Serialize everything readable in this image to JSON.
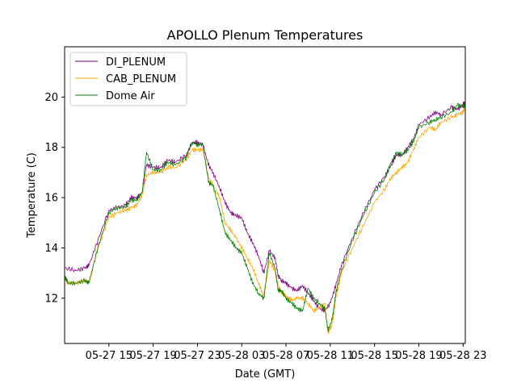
{
  "chart_data": {
    "type": "line",
    "title": "APOLLO Plenum Temperatures",
    "xlabel": "Date (GMT)",
    "ylabel": "Temperature (C)",
    "x_unit": "hours since 05-27 11:00",
    "xlim": [
      0.0,
      36.2
    ],
    "ylim": [
      10.2,
      22.0
    ],
    "x_ticks": [
      {
        "value": 4,
        "label": "05-27 15"
      },
      {
        "value": 8,
        "label": "05-27 19"
      },
      {
        "value": 12,
        "label": "05-27 23"
      },
      {
        "value": 16,
        "label": "05-28 03"
      },
      {
        "value": 20,
        "label": "05-28 07"
      },
      {
        "value": 24,
        "label": "05-28 11"
      },
      {
        "value": 28,
        "label": "05-28 15"
      },
      {
        "value": 32,
        "label": "05-28 19"
      },
      {
        "value": 36,
        "label": "05-28 23"
      }
    ],
    "y_ticks": [
      {
        "value": 12,
        "label": "12"
      },
      {
        "value": 14,
        "label": "14"
      },
      {
        "value": 16,
        "label": "16"
      },
      {
        "value": 18,
        "label": "18"
      },
      {
        "value": 20,
        "label": "20"
      }
    ],
    "grid": false,
    "legend_position": "top-left",
    "series": [
      {
        "name": "DI_PLENUM",
        "color": "#800080",
        "x": [
          0,
          1,
          1.8,
          2.2,
          3,
          4,
          4.7,
          5.5,
          6,
          6.5,
          7,
          7.4,
          8,
          8.7,
          9.3,
          10,
          11,
          11.5,
          12,
          12.5,
          13,
          13.4,
          14,
          14.5,
          15,
          15.4,
          16,
          16.5,
          17,
          17.5,
          18,
          18.5,
          19,
          19.3,
          19.6,
          20,
          20.5,
          21,
          21.5,
          22,
          22.5,
          23,
          23.5,
          24,
          24.5,
          25,
          26,
          27,
          28,
          29,
          29.5,
          30,
          30.5,
          31,
          31.5,
          32,
          33,
          33.5,
          34,
          35,
          35.5,
          36,
          36.2
        ],
        "y": [
          13.2,
          13.1,
          13.2,
          13.3,
          14.3,
          15.5,
          15.6,
          15.7,
          16.0,
          16.0,
          16.2,
          17.3,
          17.2,
          17.2,
          17.5,
          17.4,
          17.7,
          18.2,
          18.2,
          18.1,
          17.3,
          17.0,
          16.4,
          15.8,
          15.4,
          15.3,
          15.2,
          14.6,
          14.2,
          13.7,
          13.0,
          13.9,
          13.6,
          12.9,
          12.7,
          12.6,
          12.4,
          12.3,
          12.5,
          12.2,
          11.9,
          11.6,
          11.5,
          11.8,
          12.5,
          13.3,
          14.4,
          15.4,
          16.3,
          16.9,
          17.3,
          17.7,
          17.7,
          18.0,
          18.3,
          18.9,
          19.2,
          19.4,
          19.3,
          19.6,
          19.5,
          19.7,
          19.8
        ]
      },
      {
        "name": "CAB_PLENUM",
        "color": "#FFA500",
        "x": [
          0,
          0.3,
          1,
          1.8,
          2.2,
          3,
          4,
          4.7,
          5.5,
          6,
          6.5,
          7,
          7.4,
          8,
          8.7,
          9.3,
          10,
          11,
          11.5,
          12,
          12.5,
          13,
          13.4,
          14,
          14.5,
          15,
          15.5,
          16,
          16.5,
          17,
          17.5,
          18,
          18.5,
          19,
          19.3,
          19.6,
          20,
          20.5,
          21,
          21.5,
          22,
          22.5,
          23,
          23.5,
          23.8,
          24.2,
          24.5,
          25,
          26,
          27,
          28,
          29,
          29.5,
          30,
          30.5,
          31,
          31.5,
          32,
          33,
          33.5,
          34,
          35,
          35.5,
          36,
          36.2
        ],
        "y": [
          12.8,
          12.6,
          12.6,
          12.7,
          12.6,
          14.0,
          15.2,
          15.4,
          15.5,
          15.6,
          15.7,
          16.1,
          16.9,
          17.0,
          17.0,
          17.2,
          17.2,
          17.5,
          17.9,
          17.9,
          17.9,
          16.8,
          16.5,
          16.0,
          15.0,
          14.7,
          14.4,
          14.0,
          13.6,
          13.2,
          12.6,
          12.1,
          13.5,
          13.1,
          12.5,
          12.2,
          12.1,
          11.9,
          12.0,
          12.0,
          11.8,
          11.5,
          11.6,
          11.8,
          10.6,
          11.0,
          12.0,
          13.0,
          14.0,
          14.9,
          15.8,
          16.4,
          16.8,
          17.0,
          17.2,
          17.4,
          17.9,
          18.4,
          18.8,
          18.7,
          19.0,
          19.2,
          19.3,
          19.4,
          19.6
        ]
      },
      {
        "name": "Dome Air",
        "color": "#008000",
        "x": [
          0,
          0.3,
          1,
          1.8,
          2.2,
          3,
          4,
          4.7,
          5.5,
          6,
          6.5,
          7,
          7.4,
          8,
          8.7,
          9.3,
          10,
          11,
          11.5,
          12,
          12.5,
          13,
          13.4,
          14,
          14.5,
          15,
          15.5,
          16,
          16.5,
          17,
          17.5,
          18,
          18.5,
          19,
          19.3,
          19.6,
          20,
          20.5,
          21,
          21.5,
          22,
          22.5,
          23,
          23.5,
          23.8,
          24.2,
          24.5,
          25,
          26,
          27,
          28,
          29,
          29.5,
          30,
          30.5,
          31,
          31.5,
          32,
          33,
          33.5,
          34,
          35,
          35.5,
          36,
          36.2
        ],
        "y": [
          12.9,
          12.6,
          12.6,
          12.7,
          12.6,
          14.0,
          15.4,
          15.6,
          15.6,
          15.9,
          15.9,
          16.2,
          17.8,
          17.1,
          17.1,
          17.4,
          17.3,
          17.6,
          18.2,
          18.1,
          18.1,
          16.6,
          16.5,
          15.5,
          14.6,
          14.3,
          14.0,
          13.8,
          13.2,
          12.6,
          12.2,
          12.0,
          13.8,
          13.2,
          12.3,
          12.3,
          12.0,
          11.8,
          11.6,
          11.5,
          12.4,
          12.0,
          11.8,
          11.6,
          10.7,
          11.2,
          12.2,
          13.1,
          14.3,
          15.3,
          16.2,
          16.8,
          17.4,
          17.8,
          17.7,
          17.9,
          18.2,
          18.8,
          19.0,
          19.1,
          19.2,
          19.4,
          19.7,
          19.6,
          19.7
        ]
      }
    ]
  }
}
